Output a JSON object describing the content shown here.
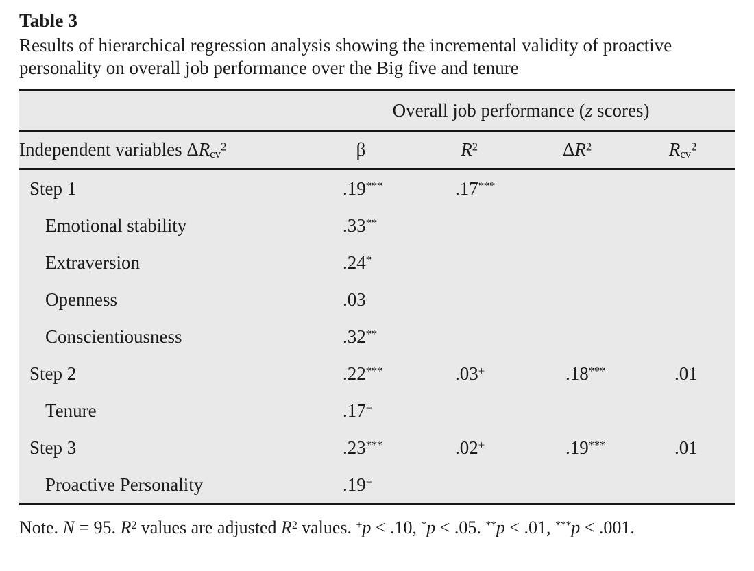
{
  "page": {
    "title": "Table 3",
    "caption": "Results of hierarchical regression analysis showing the incremental validity of proactive personality on overall job performance over the Big five and tenure"
  },
  "colors": {
    "table_background": "#e9e9e9",
    "rule": "#161616",
    "text": "#1c1c1c",
    "page_background": "#ffffff"
  },
  "table": {
    "spanner": [
      {
        "t": "Overall job performance ("
      },
      {
        "t": "z",
        "s": "i"
      },
      {
        "t": " scores)"
      }
    ],
    "headers": {
      "col1": [
        {
          "t": "Independent variables Δ"
        },
        {
          "t": "R",
          "s": "i"
        },
        {
          "t": "cv",
          "s": "sub"
        },
        {
          "t": "2",
          "s": "sup"
        }
      ],
      "beta": [
        {
          "t": "β"
        }
      ],
      "r2": [
        {
          "t": "R",
          "s": "i"
        },
        {
          "t": "2",
          "s": "sup"
        }
      ],
      "dr2": [
        {
          "t": "Δ"
        },
        {
          "t": "R",
          "s": "i"
        },
        {
          "t": "2",
          "s": "sup"
        }
      ],
      "rcv2": [
        {
          "t": "R",
          "s": "i"
        },
        {
          "t": "cv",
          "s": "sub"
        },
        {
          "t": "2",
          "s": "sup"
        }
      ]
    },
    "rows": [
      {
        "label": "Step 1",
        "indent": false,
        "cells": {
          "beta": [
            {
              "t": ".19"
            },
            {
              "t": "***",
              "s": "sup"
            }
          ],
          "r2": [
            {
              "t": ".17"
            },
            {
              "t": "***",
              "s": "sup"
            }
          ],
          "dr2": [],
          "rcv2": []
        }
      },
      {
        "label": "Emotional stability",
        "indent": true,
        "cells": {
          "beta": [
            {
              "t": ".33"
            },
            {
              "t": "**",
              "s": "sup"
            }
          ],
          "r2": [],
          "dr2": [],
          "rcv2": []
        }
      },
      {
        "label": "Extraversion",
        "indent": true,
        "cells": {
          "beta": [
            {
              "t": ".24"
            },
            {
              "t": "*",
              "s": "sup"
            }
          ],
          "r2": [],
          "dr2": [],
          "rcv2": []
        }
      },
      {
        "label": "Openness",
        "indent": true,
        "cells": {
          "beta": [
            {
              "t": ".03"
            }
          ],
          "r2": [],
          "dr2": [],
          "rcv2": []
        }
      },
      {
        "label": "Conscientiousness",
        "indent": true,
        "cells": {
          "beta": [
            {
              "t": ".32"
            },
            {
              "t": "**",
              "s": "sup"
            }
          ],
          "r2": [],
          "dr2": [],
          "rcv2": []
        }
      },
      {
        "label": "Step 2",
        "indent": false,
        "cells": {
          "beta": [
            {
              "t": ".22"
            },
            {
              "t": "***",
              "s": "sup"
            }
          ],
          "r2": [
            {
              "t": ".03"
            },
            {
              "t": "+",
              "s": "sup"
            }
          ],
          "dr2": [
            {
              "t": ".18"
            },
            {
              "t": "***",
              "s": "sup"
            }
          ],
          "rcv2": [
            {
              "t": ".01"
            }
          ]
        }
      },
      {
        "label": "Tenure",
        "indent": true,
        "cells": {
          "beta": [
            {
              "t": ".17"
            },
            {
              "t": "+",
              "s": "sup"
            }
          ],
          "r2": [],
          "dr2": [],
          "rcv2": []
        }
      },
      {
        "label": "Step 3",
        "indent": false,
        "cells": {
          "beta": [
            {
              "t": ".23"
            },
            {
              "t": "***",
              "s": "sup"
            }
          ],
          "r2": [
            {
              "t": ".02"
            },
            {
              "t": "+",
              "s": "sup"
            }
          ],
          "dr2": [
            {
              "t": ".19"
            },
            {
              "t": "***",
              "s": "sup"
            }
          ],
          "rcv2": [
            {
              "t": ".01"
            }
          ]
        }
      },
      {
        "label": "Proactive Personality",
        "indent": true,
        "cells": {
          "beta": [
            {
              "t": ".19"
            },
            {
              "t": "+",
              "s": "sup"
            }
          ],
          "r2": [],
          "dr2": [],
          "rcv2": []
        }
      }
    ]
  },
  "note": [
    {
      "t": "Note. "
    },
    {
      "t": "N",
      "s": "i"
    },
    {
      "t": " = 95. "
    },
    {
      "t": "R",
      "s": "i"
    },
    {
      "t": "2",
      "s": "sup"
    },
    {
      "t": " values are adjusted "
    },
    {
      "t": "R",
      "s": "i"
    },
    {
      "t": "2",
      "s": "sup"
    },
    {
      "t": " values. "
    },
    {
      "t": "+",
      "s": "sup"
    },
    {
      "t": "p",
      "s": "i"
    },
    {
      "t": " < .10, "
    },
    {
      "t": "*",
      "s": "sup"
    },
    {
      "t": "p",
      "s": "i"
    },
    {
      "t": " < .05. "
    },
    {
      "t": "**",
      "s": "sup"
    },
    {
      "t": "p",
      "s": "i"
    },
    {
      "t": " < .01, "
    },
    {
      "t": "***",
      "s": "sup"
    },
    {
      "t": "p",
      "s": "i"
    },
    {
      "t": " < .001."
    }
  ]
}
